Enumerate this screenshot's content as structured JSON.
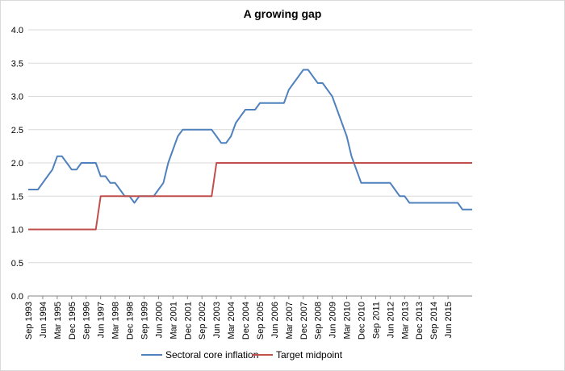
{
  "chart_data": {
    "type": "line",
    "title": "A growing gap",
    "xlabel": "",
    "ylabel": "",
    "ylim": [
      0,
      4
    ],
    "ytick_step": 0.5,
    "grid": true,
    "legend_position": "bottom",
    "x_start": "Sep 1993",
    "x_step_quarters": 1,
    "x_labels": [
      "Sep 1993",
      "Jun 1994",
      "Mar 1995",
      "Dec 1995",
      "Sep 1996",
      "Jun 1997",
      "Mar 1998",
      "Dec 1998",
      "Sep 1999",
      "Jun 2000",
      "Mar 2001",
      "Dec 2001",
      "Sep 2002",
      "Jun 2003",
      "Mar 2004",
      "Dec 2004",
      "Sep 2005",
      "Jun 2006",
      "Mar 2007",
      "Dec 2007",
      "Sep 2008",
      "Jun 2009",
      "Mar 2010",
      "Dec 2010",
      "Sep 2011",
      "Jun 2012",
      "Mar 2013",
      "Dec 2013",
      "Sep 2014",
      "Jun 2015"
    ],
    "x_label_every": 3,
    "series": [
      {
        "name": "Sectoral core inflation",
        "color": "#4f81bd",
        "values": [
          1.6,
          1.6,
          1.6,
          1.7,
          1.8,
          1.9,
          2.1,
          2.1,
          2.0,
          1.9,
          1.9,
          2.0,
          2.0,
          2.0,
          2.0,
          1.8,
          1.8,
          1.7,
          1.7,
          1.6,
          1.5,
          1.5,
          1.4,
          1.5,
          1.5,
          1.5,
          1.5,
          1.6,
          1.7,
          2.0,
          2.2,
          2.4,
          2.5,
          2.5,
          2.5,
          2.5,
          2.5,
          2.5,
          2.5,
          2.4,
          2.3,
          2.3,
          2.4,
          2.6,
          2.7,
          2.8,
          2.8,
          2.8,
          2.9,
          2.9,
          2.9,
          2.9,
          2.9,
          2.9,
          3.1,
          3.2,
          3.3,
          3.4,
          3.4,
          3.3,
          3.2,
          3.2,
          3.1,
          3.0,
          2.8,
          2.6,
          2.4,
          2.1,
          1.9,
          1.7,
          1.7,
          1.7,
          1.7,
          1.7,
          1.7,
          1.7,
          1.6,
          1.5,
          1.5,
          1.4,
          1.4,
          1.4,
          1.4,
          1.4,
          1.4,
          1.4,
          1.4,
          1.4,
          1.4,
          1.4,
          1.3,
          1.3,
          1.3
        ]
      },
      {
        "name": "Target midpoint",
        "color": "#c0504d",
        "values": [
          1.0,
          1.0,
          1.0,
          1.0,
          1.0,
          1.0,
          1.0,
          1.0,
          1.0,
          1.0,
          1.0,
          1.0,
          1.0,
          1.0,
          1.0,
          1.5,
          1.5,
          1.5,
          1.5,
          1.5,
          1.5,
          1.5,
          1.5,
          1.5,
          1.5,
          1.5,
          1.5,
          1.5,
          1.5,
          1.5,
          1.5,
          1.5,
          1.5,
          1.5,
          1.5,
          1.5,
          1.5,
          1.5,
          1.5,
          2.0,
          2.0,
          2.0,
          2.0,
          2.0,
          2.0,
          2.0,
          2.0,
          2.0,
          2.0,
          2.0,
          2.0,
          2.0,
          2.0,
          2.0,
          2.0,
          2.0,
          2.0,
          2.0,
          2.0,
          2.0,
          2.0,
          2.0,
          2.0,
          2.0,
          2.0,
          2.0,
          2.0,
          2.0,
          2.0,
          2.0,
          2.0,
          2.0,
          2.0,
          2.0,
          2.0,
          2.0,
          2.0,
          2.0,
          2.0,
          2.0,
          2.0,
          2.0,
          2.0,
          2.0,
          2.0,
          2.0,
          2.0,
          2.0,
          2.0,
          2.0,
          2.0,
          2.0,
          2.0
        ]
      }
    ]
  }
}
